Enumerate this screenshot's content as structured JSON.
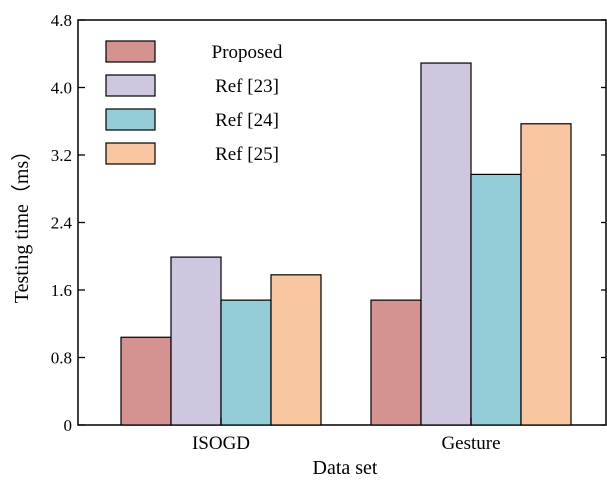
{
  "chart_data": {
    "type": "bar",
    "xlabel": "Data set",
    "ylabel": "Testing time（ms）",
    "ylim": [
      0,
      4.8
    ],
    "yticks": [
      "0",
      "0.8",
      "1.6",
      "2.4",
      "3.2",
      "4.0",
      "4.8"
    ],
    "categories": [
      "ISOGD",
      "Gesture"
    ],
    "series": [
      {
        "name": "Proposed",
        "values": [
          1.04,
          1.48
        ],
        "color": "#d49390"
      },
      {
        "name": "Ref [23]",
        "values": [
          1.99,
          4.29
        ],
        "color": "#cfc6df"
      },
      {
        "name": "Ref [24]",
        "values": [
          1.48,
          2.97
        ],
        "color": "#94cdd7"
      },
      {
        "name": "Ref [25]",
        "values": [
          1.78,
          3.57
        ],
        "color": "#f8c6a1"
      }
    ],
    "legend_position": "top-left",
    "grid": false
  }
}
